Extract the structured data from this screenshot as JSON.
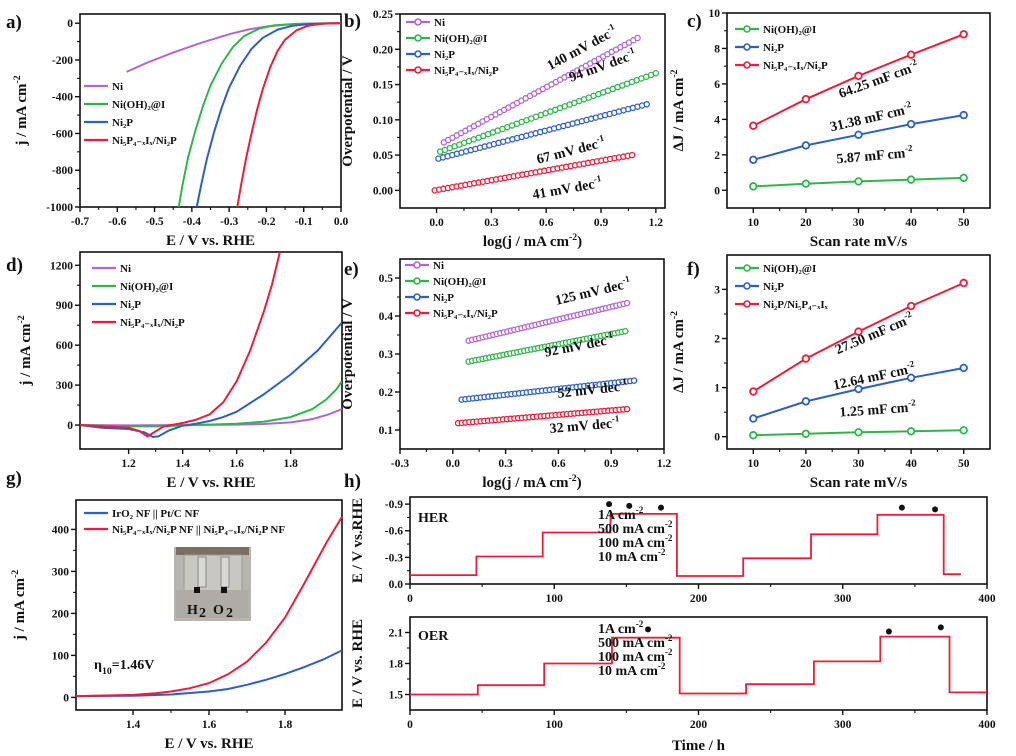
{
  "figure": {
    "panels": [
      "a)",
      "b)",
      "c)",
      "d)",
      "e)",
      "f)",
      "g)",
      "h)"
    ]
  },
  "colors": {
    "Ni": "#b265d6",
    "Ni(OH)2@I": "#2fb64a",
    "Ni2P": "#2e5fc9",
    "Ni5P4-xIx/Ni2P": "#ee1c3a",
    "axis": "#111111",
    "her_label": "#3cb862",
    "oer_label": "#2e6bc2"
  },
  "chart_data": [
    {
      "id": "a",
      "type": "line",
      "title": "",
      "xlabel": "E / V  vs. RHE",
      "ylabel": "j / mA cm-2",
      "xlim": [
        -0.7,
        0.0
      ],
      "ylim": [
        -1000,
        50
      ],
      "xticks": [
        -0.7,
        -0.6,
        -0.5,
        -0.4,
        -0.3,
        -0.2,
        -0.1,
        0.0
      ],
      "xtick_labels": [
        "-0.7",
        "-0.6",
        "-0.5",
        "-0.4",
        "-0.3",
        "-0.2",
        "-0.1",
        "0.0"
      ],
      "yticks": [
        0,
        -200,
        -400,
        -600,
        -800,
        -1000
      ],
      "ytick_labels": [
        "0",
        "-200",
        "-400",
        "-600",
        "-800",
        "-1000"
      ],
      "legend_position": "middle-left",
      "series": [
        {
          "name": "Ni",
          "legend": "Ni",
          "color_key": "Ni",
          "x": [
            -0.575,
            -0.52,
            -0.45,
            -0.38,
            -0.3,
            -0.25,
            -0.2,
            -0.15,
            -0.1,
            -0.05,
            0.0
          ],
          "y": [
            -265,
            -215,
            -160,
            -110,
            -60,
            -35,
            -18,
            -8,
            -3,
            -1,
            0
          ]
        },
        {
          "name": "Ni(OH)2@I",
          "legend": "Ni(OH)₂@I",
          "color_key": "Ni(OH)2@I",
          "x": [
            -0.435,
            -0.425,
            -0.41,
            -0.39,
            -0.37,
            -0.35,
            -0.32,
            -0.29,
            -0.26,
            -0.22,
            -0.18,
            -0.12,
            -0.05,
            0.0
          ],
          "y": [
            -1000,
            -880,
            -730,
            -580,
            -450,
            -340,
            -220,
            -130,
            -70,
            -30,
            -12,
            -4,
            -1,
            0
          ]
        },
        {
          "name": "Ni2P",
          "legend": "Ni₂P",
          "color_key": "Ni2P",
          "x": [
            -0.387,
            -0.375,
            -0.36,
            -0.34,
            -0.32,
            -0.3,
            -0.27,
            -0.24,
            -0.21,
            -0.17,
            -0.13,
            -0.08,
            -0.03,
            0.0
          ],
          "y": [
            -1000,
            -880,
            -740,
            -590,
            -460,
            -350,
            -230,
            -140,
            -80,
            -35,
            -14,
            -4,
            -1,
            0
          ]
        },
        {
          "name": "Ni5P4-xIx/Ni2P",
          "legend": "Ni₅P₄₋ₓIₓ/Ni₂P",
          "color_key": "Ni5P4-xIx/Ni2P",
          "x": [
            -0.278,
            -0.268,
            -0.255,
            -0.24,
            -0.225,
            -0.21,
            -0.19,
            -0.17,
            -0.15,
            -0.12,
            -0.09,
            -0.06,
            -0.03,
            0.0
          ],
          "y": [
            -1000,
            -880,
            -740,
            -600,
            -470,
            -360,
            -240,
            -150,
            -90,
            -40,
            -15,
            -5,
            -1,
            0
          ]
        }
      ]
    },
    {
      "id": "b",
      "type": "scatter",
      "title": "",
      "xlabel": "log(j / mA cm-2)",
      "ylabel": "Overpotential / V",
      "xlim": [
        -0.2,
        1.25
      ],
      "ylim": [
        -0.025,
        0.25
      ],
      "xticks": [
        0.0,
        0.3,
        0.6,
        0.9,
        1.2
      ],
      "xtick_labels": [
        "0.0",
        "0.3",
        "0.6",
        "0.9",
        "1.2"
      ],
      "yticks": [
        0.0,
        0.05,
        0.1,
        0.15,
        0.2,
        0.25
      ],
      "ytick_labels": [
        "0.00",
        "0.05",
        "0.10",
        "0.15",
        "0.20",
        "0.25"
      ],
      "legend_position": "top-left",
      "series": [
        {
          "name": "Ni",
          "legend": "Ni",
          "color_key": "Ni",
          "x_range": [
            0.04,
            1.1
          ],
          "y_range": [
            0.068,
            0.216
          ],
          "tafel_label": "140 mV dec-1"
        },
        {
          "name": "Ni(OH)2@I",
          "legend": "Ni(OH)₂@I",
          "color_key": "Ni(OH)2@I",
          "x_range": [
            0.02,
            1.2
          ],
          "y_range": [
            0.055,
            0.166
          ],
          "tafel_label": "94 mV dec-1"
        },
        {
          "name": "Ni2P",
          "legend": "Ni₂P",
          "color_key": "Ni2P",
          "x_range": [
            0.01,
            1.15
          ],
          "y_range": [
            0.045,
            0.122
          ],
          "tafel_label": "67 mV dec-1"
        },
        {
          "name": "Ni5P4-xIx/Ni2P",
          "legend": "Ni₅P₄₋ₓIₓ/Ni₂P",
          "color_key": "Ni5P4-xIx/Ni2P",
          "x_range": [
            -0.01,
            1.07
          ],
          "y_range": [
            0.0,
            0.05
          ],
          "tafel_label": "41 mV dec-1"
        }
      ]
    },
    {
      "id": "c",
      "type": "line",
      "title": "",
      "xlabel": "Scan rate mV/s",
      "ylabel": "ΔJ / mA cm-2",
      "xlim": [
        5,
        55
      ],
      "ylim": [
        -1,
        10
      ],
      "xticks": [
        10,
        20,
        30,
        40,
        50
      ],
      "xtick_labels": [
        "10",
        "20",
        "30",
        "40",
        "50"
      ],
      "yticks": [
        0,
        2,
        4,
        6,
        8,
        10
      ],
      "ytick_labels": [
        "0",
        "2",
        "4",
        "6",
        "8",
        "10"
      ],
      "legend_position": "top-left",
      "x": [
        10,
        20,
        30,
        40,
        50
      ],
      "series": [
        {
          "name": "Ni(OH)2@I",
          "legend": "Ni(OH)₂@I",
          "color_key": "Ni(OH)2@I",
          "values": [
            0.22,
            0.37,
            0.5,
            0.6,
            0.7
          ],
          "cdl_label": "5.87 mF cm-2"
        },
        {
          "name": "Ni2P",
          "legend": "Ni₂P",
          "color_key": "Ni2P",
          "values": [
            1.72,
            2.53,
            3.13,
            3.73,
            4.24
          ],
          "cdl_label": "31.38 mF cm-2"
        },
        {
          "name": "Ni5P4-xIx/Ni2P",
          "legend": "Ni₅P₄₋ₓIₓ/Ni₂P",
          "color_key": "Ni5P4-xIx/Ni2P",
          "values": [
            3.64,
            5.14,
            6.45,
            7.65,
            8.8
          ],
          "cdl_label": "64.25 mF cm-2"
        }
      ]
    },
    {
      "id": "d",
      "type": "line",
      "title": "",
      "xlabel": "E / V  vs. RHE",
      "ylabel": "j / mA cm-2",
      "xlim": [
        1.02,
        1.99
      ],
      "ylim": [
        -180,
        1300
      ],
      "xticks": [
        1.2,
        1.4,
        1.6,
        1.8
      ],
      "xtick_labels": [
        "1.2",
        "1.4",
        "1.6",
        "1.8"
      ],
      "yticks": [
        0,
        300,
        600,
        900,
        1200
      ],
      "ytick_labels": [
        "0",
        "300",
        "600",
        "900",
        "1200"
      ],
      "legend_position": "top-left",
      "series": [
        {
          "name": "Ni",
          "legend": "Ni",
          "color_key": "Ni",
          "x": [
            1.02,
            1.2,
            1.4,
            1.6,
            1.7,
            1.8,
            1.88,
            1.94,
            1.99
          ],
          "y": [
            0,
            -3,
            0,
            3,
            8,
            20,
            45,
            80,
            120
          ]
        },
        {
          "name": "Ni(OH)2@I",
          "legend": "Ni(OH)₂@I",
          "color_key": "Ni(OH)2@I",
          "x": [
            1.02,
            1.15,
            1.3,
            1.45,
            1.6,
            1.7,
            1.8,
            1.88,
            1.93,
            1.97,
            1.99
          ],
          "y": [
            0,
            -8,
            -10,
            0,
            10,
            25,
            60,
            120,
            190,
            270,
            330
          ]
        },
        {
          "name": "Ni2P",
          "legend": "Ni₂P",
          "color_key": "Ni2P",
          "x": [
            1.02,
            1.1,
            1.2,
            1.26,
            1.29,
            1.31,
            1.35,
            1.4,
            1.45,
            1.5,
            1.55,
            1.6,
            1.7,
            1.8,
            1.9,
            1.99
          ],
          "y": [
            0,
            -20,
            -30,
            -55,
            -90,
            -85,
            -40,
            -5,
            10,
            30,
            60,
            100,
            230,
            380,
            560,
            770
          ]
        },
        {
          "name": "Ni5P4-xIx/Ni2P",
          "legend": "Ni₅P₄₋ₓIₓ/Ni₂P",
          "color_key": "Ni5P4-xIx/Ni2P",
          "x": [
            1.02,
            1.1,
            1.2,
            1.24,
            1.27,
            1.29,
            1.33,
            1.4,
            1.45,
            1.5,
            1.55,
            1.6,
            1.65,
            1.7,
            1.73,
            1.76
          ],
          "y": [
            0,
            -10,
            -20,
            -45,
            -85,
            -60,
            -10,
            15,
            40,
            80,
            170,
            330,
            560,
            850,
            1050,
            1300
          ]
        }
      ]
    },
    {
      "id": "e",
      "type": "scatter",
      "title": "",
      "xlabel": "log(j / mA cm-2)",
      "ylabel": "Overpotential / V",
      "xlim": [
        -0.3,
        1.2
      ],
      "ylim": [
        0.05,
        0.55
      ],
      "xticks": [
        -0.3,
        0.0,
        0.3,
        0.6,
        0.9,
        1.2
      ],
      "xtick_labels": [
        "-0.3",
        "0.0",
        "0.3",
        "0.6",
        "0.9",
        "1.2"
      ],
      "yticks": [
        0.1,
        0.2,
        0.3,
        0.4,
        0.5
      ],
      "ytick_labels": [
        "0.1",
        "0.2",
        "0.3",
        "0.4",
        "0.5"
      ],
      "legend_position": "top-left",
      "series": [
        {
          "name": "Ni",
          "legend": "Ni",
          "color_key": "Ni",
          "x_range": [
            0.09,
            0.99
          ],
          "y_range": [
            0.335,
            0.434
          ],
          "tafel_label": "125 mV dec-1"
        },
        {
          "name": "Ni(OH)2@I",
          "legend": "Ni(OH)₂@I",
          "color_key": "Ni(OH)2@I",
          "x_range": [
            0.09,
            0.98
          ],
          "y_range": [
            0.28,
            0.36
          ],
          "tafel_label": "92 mV dec-1"
        },
        {
          "name": "Ni2P",
          "legend": "Ni₂P",
          "color_key": "Ni2P",
          "x_range": [
            0.05,
            1.03
          ],
          "y_range": [
            0.18,
            0.23
          ],
          "tafel_label": "52 mV dec-1"
        },
        {
          "name": "Ni5P4-xIx/Ni2P",
          "legend": "Ni₅P₄₋ₓIₓ/Ni₂P",
          "color_key": "Ni5P4-xIx/Ni2P",
          "x_range": [
            0.03,
            0.99
          ],
          "y_range": [
            0.118,
            0.155
          ],
          "tafel_label": "32 mV dec-1"
        }
      ]
    },
    {
      "id": "f",
      "type": "line",
      "title": "",
      "xlabel": "Scan rate mV/s",
      "ylabel": "ΔJ / mA cm-2",
      "xlim": [
        5,
        55
      ],
      "ylim": [
        -0.25,
        3.7
      ],
      "xticks": [
        10,
        20,
        30,
        40,
        50
      ],
      "xtick_labels": [
        "10",
        "20",
        "30",
        "40",
        "50"
      ],
      "yticks": [
        0,
        1,
        2,
        3
      ],
      "ytick_labels": [
        "0",
        "1",
        "2",
        "3"
      ],
      "legend_position": "top-left",
      "x": [
        10,
        20,
        30,
        40,
        50
      ],
      "series": [
        {
          "name": "Ni(OH)2@I",
          "legend": "Ni(OH)₂@I",
          "color_key": "Ni(OH)2@I",
          "values": [
            0.03,
            0.06,
            0.09,
            0.11,
            0.13
          ],
          "cdl_label": "1.25 mF cm-2"
        },
        {
          "name": "Ni2P",
          "legend": "Ni₂P",
          "color_key": "Ni2P",
          "values": [
            0.37,
            0.72,
            0.97,
            1.2,
            1.4
          ],
          "cdl_label": "12.64 mF cm-2"
        },
        {
          "name": "Ni2P/Ni5P4-xIx",
          "legend": "Ni₂P/Ni₅P₄₋ₓIₓ",
          "color_key": "Ni5P4-xIx/Ni2P",
          "values": [
            0.92,
            1.59,
            2.14,
            2.66,
            3.13
          ],
          "cdl_label": "27.50 mF cm-2"
        }
      ]
    },
    {
      "id": "g",
      "type": "line",
      "title": "",
      "xlabel": "E / V  vs. RHE",
      "ylabel": "j / mA cm-2",
      "xlim": [
        1.25,
        1.95
      ],
      "ylim": [
        -30,
        470
      ],
      "xticks": [
        1.4,
        1.6,
        1.8
      ],
      "xtick_labels": [
        "1.4",
        "1.6",
        "1.8"
      ],
      "yticks": [
        0,
        100,
        200,
        300,
        400
      ],
      "ytick_labels": [
        "0",
        "100",
        "200",
        "300",
        "400"
      ],
      "legend_position": "top",
      "annotation": "η10=1.46V",
      "inset_labels": [
        "H2",
        "O2"
      ],
      "series": [
        {
          "name": "IrO2 NF || Pt/C NF",
          "legend": "IrO₂ NF || Pt/C NF",
          "color": "#2e5fc9",
          "x": [
            1.25,
            1.4,
            1.5,
            1.6,
            1.65,
            1.7,
            1.75,
            1.8,
            1.85,
            1.9,
            1.95
          ],
          "y": [
            3,
            4,
            7,
            14,
            20,
            30,
            42,
            56,
            72,
            90,
            112
          ]
        },
        {
          "name": "Ni5P4-xIx/Ni2P NF || Ni5P4-xIx/Ni2P NF",
          "legend": "Ni₅P₄₋ₓIₓ/Ni₂P NF || Ni₅P₄₋ₓIₓ/Ni₂P NF",
          "color": "#ee1c3a",
          "x": [
            1.25,
            1.4,
            1.46,
            1.5,
            1.55,
            1.6,
            1.65,
            1.7,
            1.75,
            1.8,
            1.85,
            1.88,
            1.91,
            1.93,
            1.95
          ],
          "y": [
            3,
            6,
            10,
            14,
            22,
            34,
            55,
            85,
            130,
            190,
            270,
            320,
            370,
            400,
            430
          ]
        }
      ]
    },
    {
      "id": "h-her",
      "type": "line",
      "title": "",
      "panel_tag": "HER",
      "xlabel": "",
      "ylabel": "E / V vs.RHE",
      "xlim": [
        0,
        400
      ],
      "ylim": [
        0.0,
        -0.98
      ],
      "xticks": [
        0,
        100,
        200,
        300,
        400
      ],
      "xtick_labels": [
        "0",
        "100",
        "200",
        "300",
        "400"
      ],
      "yticks": [
        0.0,
        -0.3,
        -0.6,
        -0.9
      ],
      "ytick_labels": [
        "0.0",
        "-0.3",
        "-0.6",
        "-0.9"
      ],
      "current_labels": [
        {
          "text": "1A cm-2",
          "color": "#1e7a34"
        },
        {
          "text": "500 mA cm-2",
          "color": "#2fa640"
        },
        {
          "text": "100 mA cm-2",
          "color": "#3cb54a"
        },
        {
          "text": "10 mA cm-2",
          "color": "#7fd07f"
        }
      ],
      "steps": [
        {
          "t0": 0,
          "t1": 46,
          "v": -0.1
        },
        {
          "t0": 46,
          "t1": 92,
          "v": -0.31
        },
        {
          "t0": 92,
          "t1": 139,
          "v": -0.58
        },
        {
          "t0": 139,
          "t1": 185,
          "v": -0.79
        },
        {
          "t0": 185,
          "t1": 231,
          "v": -0.09
        },
        {
          "t0": 231,
          "t1": 278,
          "v": -0.29
        },
        {
          "t0": 278,
          "t1": 324,
          "v": -0.56
        },
        {
          "t0": 324,
          "t1": 370,
          "v": -0.78
        },
        {
          "t0": 370,
          "t1": 382,
          "v": -0.11
        }
      ],
      "markers_t": [
        138,
        152,
        174,
        341,
        364
      ],
      "markers_v": [
        -0.9,
        -0.88,
        -0.86,
        -0.86,
        -0.84
      ]
    },
    {
      "id": "h-oer",
      "type": "line",
      "title": "",
      "panel_tag": "OER",
      "xlabel": "Time / h",
      "ylabel": "E / V vs. RHE",
      "xlim": [
        0,
        400
      ],
      "ylim": [
        1.35,
        2.25
      ],
      "xticks": [
        0,
        100,
        200,
        300,
        400
      ],
      "xtick_labels": [
        "0",
        "100",
        "200",
        "300",
        "400"
      ],
      "yticks": [
        1.5,
        1.8,
        2.1
      ],
      "ytick_labels": [
        "1.5",
        "1.8",
        "2.1"
      ],
      "current_labels": [
        {
          "text": "1A cm-2",
          "color": "#1e6bbd"
        },
        {
          "text": "500 mA cm-2",
          "color": "#2a93d0"
        },
        {
          "text": "100 mA cm-2",
          "color": "#3fb0dd"
        },
        {
          "text": "10 mA cm-2",
          "color": "#79cbe6"
        }
      ],
      "steps": [
        {
          "t0": 0,
          "t1": 47,
          "v": 1.5
        },
        {
          "t0": 47,
          "t1": 93,
          "v": 1.59
        },
        {
          "t0": 93,
          "t1": 140,
          "v": 1.8
        },
        {
          "t0": 140,
          "t1": 187,
          "v": 2.05
        },
        {
          "t0": 187,
          "t1": 233,
          "v": 1.51
        },
        {
          "t0": 233,
          "t1": 280,
          "v": 1.6
        },
        {
          "t0": 280,
          "t1": 326,
          "v": 1.82
        },
        {
          "t0": 326,
          "t1": 374,
          "v": 2.06
        },
        {
          "t0": 374,
          "t1": 400,
          "v": 1.52
        }
      ],
      "markers_t": [
        165,
        332,
        368
      ],
      "markers_v": [
        2.13,
        2.11,
        2.15
      ]
    }
  ]
}
